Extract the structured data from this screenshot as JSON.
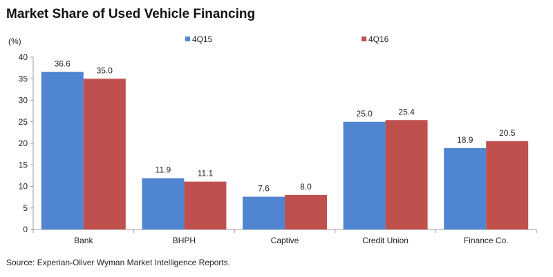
{
  "chart_data": {
    "type": "bar",
    "title": "Market Share of Used Vehicle Financing",
    "ylabel": "(%)",
    "xlabel": "",
    "ylim": [
      0,
      40
    ],
    "yticks": [
      0,
      5,
      10,
      15,
      20,
      25,
      30,
      35,
      40
    ],
    "categories": [
      "Bank",
      "BHPH",
      "Captive",
      "Credit Union",
      "Finance Co."
    ],
    "series": [
      {
        "name": "4Q15",
        "color": "#4f85d1",
        "values": [
          36.6,
          11.9,
          7.6,
          25.0,
          18.9
        ],
        "labels": [
          "36.6",
          "11.9",
          "7.6",
          "25.0",
          "18.9"
        ]
      },
      {
        "name": "4Q16",
        "color": "#c0504d",
        "values": [
          35.0,
          11.1,
          8.0,
          25.4,
          20.5
        ],
        "labels": [
          "35.0",
          "11.1",
          "8.0",
          "25.4",
          "20.5"
        ]
      }
    ],
    "legend_position": "top",
    "grid": false
  },
  "source": "Source: Experian-Oliver Wyman Market Intelligence Reports."
}
